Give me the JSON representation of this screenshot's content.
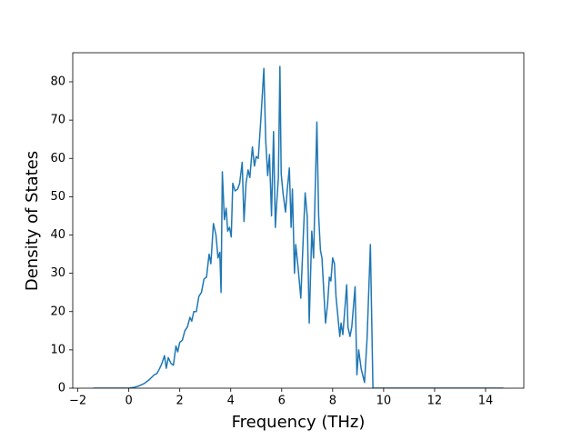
{
  "chart_data": {
    "type": "line",
    "xlabel": "Frequency (THz)",
    "ylabel": "Density of States",
    "color": "#1f77b4",
    "x": [
      -1.4,
      0,
      0.2,
      0.4,
      0.6,
      0.8,
      1.0,
      1.1,
      1.2,
      1.3,
      1.4,
      1.47,
      1.55,
      1.65,
      1.75,
      1.85,
      1.92,
      2.0,
      2.1,
      2.2,
      2.3,
      2.4,
      2.47,
      2.55,
      2.65,
      2.75,
      2.85,
      2.95,
      3.05,
      3.15,
      3.22,
      3.32,
      3.42,
      3.5,
      3.57,
      3.62,
      3.67,
      3.75,
      3.82,
      3.88,
      3.95,
      4.02,
      4.08,
      4.17,
      4.27,
      4.35,
      4.45,
      4.52,
      4.6,
      4.68,
      4.75,
      4.85,
      4.93,
      5.0,
      5.08,
      5.18,
      5.3,
      5.37,
      5.45,
      5.52,
      5.6,
      5.68,
      5.75,
      5.8,
      5.87,
      5.93,
      5.98,
      6.05,
      6.15,
      6.22,
      6.3,
      6.37,
      6.42,
      6.5,
      6.55,
      6.65,
      6.75,
      6.85,
      6.92,
      7.0,
      7.08,
      7.18,
      7.25,
      7.38,
      7.45,
      7.52,
      7.58,
      7.72,
      7.8,
      7.87,
      7.93,
      8.0,
      8.07,
      8.13,
      8.2,
      8.28,
      8.33,
      8.4,
      8.55,
      8.6,
      8.68,
      8.75,
      8.88,
      8.95,
      9.02,
      9.12,
      9.25,
      9.35,
      9.48,
      9.58,
      9.7,
      14.7
    ],
    "values": [
      0,
      0,
      0.2,
      0.6,
      1.2,
      2.2,
      3.5,
      3.8,
      5,
      6.5,
      8.5,
      5.2,
      8,
      6.5,
      6,
      11,
      9.5,
      12,
      12.5,
      15,
      16,
      18.5,
      17.5,
      20,
      20,
      24,
      25,
      28.5,
      29,
      35,
      32.5,
      43,
      40,
      34,
      35.5,
      25,
      56.5,
      44,
      47,
      41,
      42,
      39.5,
      53.5,
      51.5,
      52,
      53.5,
      59,
      43.5,
      53.5,
      57,
      55,
      63,
      58,
      60.5,
      60,
      70,
      83.5,
      65,
      55.5,
      61,
      45,
      67,
      42,
      48,
      55,
      84,
      56,
      51,
      46,
      52,
      57.5,
      42,
      52,
      30,
      37.5,
      31,
      23.5,
      40,
      51,
      45,
      17,
      41,
      34,
      69.5,
      45,
      36,
      34,
      17,
      22,
      29,
      28,
      34,
      32.5,
      24,
      19,
      13.5,
      17,
      14,
      27,
      16,
      13.5,
      16,
      26.5,
      3.5,
      10,
      5,
      1.5,
      13,
      37.5,
      0,
      0,
      0
    ],
    "xlim": [
      -2.2,
      15.5
    ],
    "ylim": [
      0,
      87.6
    ],
    "xticks": [
      {
        "value": -2,
        "label": "−2"
      },
      0,
      2,
      4,
      6,
      8,
      10,
      12,
      14
    ],
    "yticks": [
      0,
      10,
      20,
      30,
      40,
      50,
      60,
      70,
      80
    ]
  }
}
